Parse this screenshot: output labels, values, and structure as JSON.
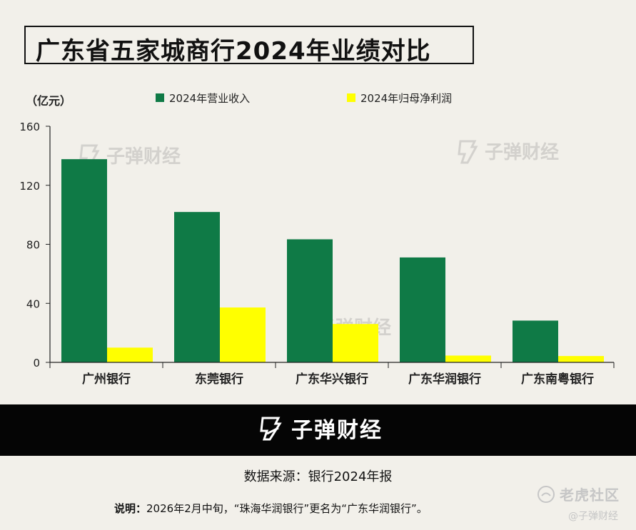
{
  "title": "广东省五家城商行2024年业绩对比",
  "watermark_text": "子弹财经",
  "footer": {
    "logo_text": "子弹财经",
    "source": "数据来源：银行2024年报",
    "note_label": "说明：",
    "note_text": "2026年2月中旬，“珠海华润银行”更名为“广东华润银行”。"
  },
  "overlay": {
    "tiger_text": "老虎社区",
    "tiger_sub": "@子弹财经"
  },
  "colors": {
    "revenue": "#0f7a46",
    "profit": "#ffff00"
  },
  "chart_data": {
    "type": "bar",
    "ylabel": "（亿元）",
    "ylim": [
      0,
      160
    ],
    "yticks": [
      0,
      40,
      80,
      120,
      160
    ],
    "legend_position": "top",
    "categories": [
      "广州银行",
      "东莞银行",
      "广东华兴银行",
      "广东华润银行",
      "广东南粤银行"
    ],
    "series": [
      {
        "name": "2024年营业收入",
        "values": [
          137.7,
          101.9,
          83.4,
          71.1,
          28.3
        ]
      },
      {
        "name": "2024年归母净利润",
        "values": [
          10.0,
          37.2,
          26.0,
          4.6,
          4.3
        ]
      }
    ]
  }
}
